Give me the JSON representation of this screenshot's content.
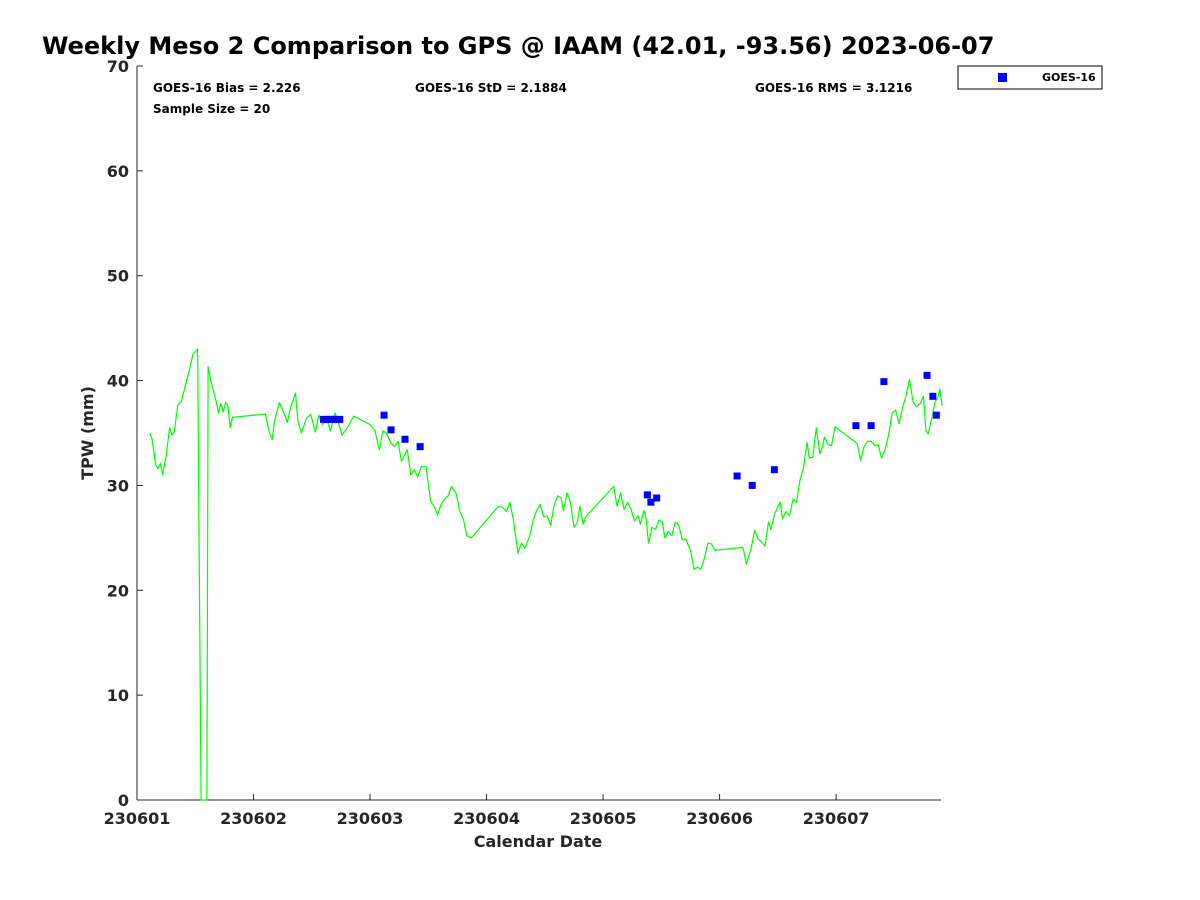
{
  "chart_data": {
    "type": "line",
    "title": "Weekly Meso 2 Comparison to GPS @ IAAM (42.01, -93.56) 2023-06-07",
    "xlabel": "Calendar Date",
    "ylabel": "TPW (mm)",
    "xlim": [
      0,
      6.9
    ],
    "ylim": [
      0,
      70
    ],
    "x_ticks": [
      {
        "value": 0,
        "label": "230601"
      },
      {
        "value": 1,
        "label": "230602"
      },
      {
        "value": 2,
        "label": "230603"
      },
      {
        "value": 3,
        "label": "230604"
      },
      {
        "value": 4,
        "label": "230605"
      },
      {
        "value": 5,
        "label": "230606"
      },
      {
        "value": 6,
        "label": "230607"
      }
    ],
    "y_ticks": [
      {
        "value": 0,
        "label": "0"
      },
      {
        "value": 10,
        "label": "10"
      },
      {
        "value": 20,
        "label": "20"
      },
      {
        "value": 30,
        "label": "30"
      },
      {
        "value": 40,
        "label": "40"
      },
      {
        "value": 50,
        "label": "50"
      },
      {
        "value": 60,
        "label": "60"
      },
      {
        "value": 70,
        "label": "70"
      }
    ],
    "stats": {
      "bias": "GOES-16 Bias = 2.226",
      "std": "GOES-16 StD = 2.1884",
      "rms": "GOES-16 RMS = 3.1216",
      "sample_size": "Sample Size = 20"
    },
    "legend": {
      "label": "GOES-16",
      "position": "top-right-outside"
    },
    "gps_series": {
      "name": "GPS",
      "color": "#00ff00",
      "points": [
        [
          0.11,
          35.0
        ],
        [
          0.13,
          34.4
        ],
        [
          0.16,
          32.0
        ],
        [
          0.18,
          31.6
        ],
        [
          0.2,
          32.1
        ],
        [
          0.22,
          31.0
        ],
        [
          0.25,
          32.8
        ],
        [
          0.28,
          35.5
        ],
        [
          0.3,
          34.8
        ],
        [
          0.32,
          35.1
        ],
        [
          0.35,
          37.7
        ],
        [
          0.38,
          38.0
        ],
        [
          0.41,
          39.3
        ],
        [
          0.45,
          41.0
        ],
        [
          0.48,
          42.5
        ],
        [
          0.52,
          43.0
        ],
        [
          0.55,
          0.0
        ],
        [
          0.6,
          0.0
        ],
        [
          0.61,
          41.3
        ],
        [
          0.64,
          39.7
        ],
        [
          0.68,
          38.0
        ],
        [
          0.7,
          36.9
        ],
        [
          0.72,
          37.8
        ],
        [
          0.74,
          37.0
        ],
        [
          0.76,
          37.9
        ],
        [
          0.78,
          37.6
        ],
        [
          0.8,
          35.5
        ],
        [
          0.82,
          36.5
        ],
        [
          1.1,
          36.8
        ],
        [
          1.14,
          34.9
        ],
        [
          1.16,
          34.4
        ],
        [
          1.18,
          36.1
        ],
        [
          1.22,
          37.9
        ],
        [
          1.25,
          37.2
        ],
        [
          1.29,
          36.0
        ],
        [
          1.32,
          37.5
        ],
        [
          1.36,
          38.8
        ],
        [
          1.38,
          36.2
        ],
        [
          1.41,
          35.0
        ],
        [
          1.45,
          36.3
        ],
        [
          1.49,
          36.8
        ],
        [
          1.53,
          35.1
        ],
        [
          1.56,
          36.7
        ],
        [
          1.59,
          35.8
        ],
        [
          1.63,
          36.3
        ],
        [
          1.66,
          35.2
        ],
        [
          1.7,
          36.9
        ],
        [
          1.73,
          35.9
        ],
        [
          1.76,
          34.8
        ],
        [
          1.8,
          35.4
        ],
        [
          1.86,
          36.6
        ],
        [
          2.0,
          35.8
        ],
        [
          2.04,
          35.3
        ],
        [
          2.08,
          33.4
        ],
        [
          2.11,
          35.2
        ],
        [
          2.14,
          35.0
        ],
        [
          2.18,
          34.0
        ],
        [
          2.21,
          33.7
        ],
        [
          2.24,
          34.2
        ],
        [
          2.27,
          32.3
        ],
        [
          2.32,
          33.4
        ],
        [
          2.35,
          31.0
        ],
        [
          2.38,
          31.5
        ],
        [
          2.41,
          30.8
        ],
        [
          2.44,
          31.8
        ],
        [
          2.48,
          31.8
        ],
        [
          2.52,
          28.5
        ],
        [
          2.55,
          28.0
        ],
        [
          2.58,
          27.2
        ],
        [
          2.61,
          28.2
        ],
        [
          2.64,
          28.7
        ],
        [
          2.67,
          29.0
        ],
        [
          2.7,
          29.9
        ],
        [
          2.74,
          29.2
        ],
        [
          2.77,
          27.5
        ],
        [
          2.8,
          26.8
        ],
        [
          2.83,
          25.2
        ],
        [
          2.87,
          25.0
        ],
        [
          3.1,
          28.0
        ],
        [
          3.14,
          27.9
        ],
        [
          3.17,
          27.5
        ],
        [
          3.2,
          28.4
        ],
        [
          3.23,
          26.7
        ],
        [
          3.27,
          23.5
        ],
        [
          3.3,
          24.5
        ],
        [
          3.33,
          24.0
        ],
        [
          3.37,
          25.2
        ],
        [
          3.4,
          26.7
        ],
        [
          3.43,
          27.6
        ],
        [
          3.46,
          28.2
        ],
        [
          3.49,
          27.0
        ],
        [
          3.52,
          27.1
        ],
        [
          3.55,
          26.2
        ],
        [
          3.58,
          28.1
        ],
        [
          3.61,
          29.0
        ],
        [
          3.64,
          28.8
        ],
        [
          3.66,
          27.6
        ],
        [
          3.69,
          29.3
        ],
        [
          3.72,
          28.4
        ],
        [
          3.75,
          26.0
        ],
        [
          3.78,
          26.5
        ],
        [
          3.8,
          28.0
        ],
        [
          3.83,
          26.3
        ],
        [
          3.85,
          27.0
        ],
        [
          4.09,
          29.9
        ],
        [
          4.12,
          28.0
        ],
        [
          4.15,
          29.3
        ],
        [
          4.18,
          27.7
        ],
        [
          4.21,
          28.4
        ],
        [
          4.24,
          27.7
        ],
        [
          4.27,
          26.6
        ],
        [
          4.3,
          27.1
        ],
        [
          4.32,
          26.3
        ],
        [
          4.35,
          27.6
        ],
        [
          4.37,
          26.8
        ],
        [
          4.39,
          24.5
        ],
        [
          4.42,
          26.0
        ],
        [
          4.45,
          25.8
        ],
        [
          4.48,
          26.7
        ],
        [
          4.51,
          26.5
        ],
        [
          4.53,
          25.0
        ],
        [
          4.56,
          25.6
        ],
        [
          4.59,
          25.2
        ],
        [
          4.62,
          26.5
        ],
        [
          4.65,
          26.2
        ],
        [
          4.68,
          24.8
        ],
        [
          4.71,
          24.9
        ],
        [
          4.75,
          23.8
        ],
        [
          4.78,
          22.0
        ],
        [
          4.81,
          22.2
        ],
        [
          4.84,
          22.0
        ],
        [
          4.87,
          23.1
        ],
        [
          4.9,
          24.5
        ],
        [
          4.93,
          24.4
        ],
        [
          4.96,
          23.8
        ],
        [
          5.2,
          24.1
        ],
        [
          5.23,
          22.5
        ],
        [
          5.27,
          24.0
        ],
        [
          5.3,
          25.7
        ],
        [
          5.33,
          24.9
        ],
        [
          5.36,
          24.6
        ],
        [
          5.39,
          24.2
        ],
        [
          5.42,
          26.5
        ],
        [
          5.44,
          25.8
        ],
        [
          5.47,
          27.2
        ],
        [
          5.5,
          28.0
        ],
        [
          5.52,
          28.4
        ],
        [
          5.54,
          26.8
        ],
        [
          5.57,
          27.5
        ],
        [
          5.6,
          27.1
        ],
        [
          5.63,
          28.7
        ],
        [
          5.66,
          28.4
        ],
        [
          5.69,
          30.5
        ],
        [
          5.72,
          31.7
        ],
        [
          5.75,
          34.1
        ],
        [
          5.77,
          32.6
        ],
        [
          5.8,
          32.7
        ],
        [
          5.83,
          35.5
        ],
        [
          5.86,
          33.0
        ],
        [
          5.88,
          33.6
        ],
        [
          5.9,
          34.6
        ],
        [
          5.93,
          33.9
        ],
        [
          5.96,
          33.8
        ],
        [
          5.99,
          35.6
        ],
        [
          6.18,
          34.0
        ],
        [
          6.21,
          32.4
        ],
        [
          6.24,
          33.7
        ],
        [
          6.27,
          34.2
        ],
        [
          6.3,
          34.2
        ],
        [
          6.33,
          33.8
        ],
        [
          6.36,
          33.9
        ],
        [
          6.39,
          32.6
        ],
        [
          6.42,
          33.4
        ],
        [
          6.45,
          34.8
        ],
        [
          6.48,
          36.9
        ],
        [
          6.51,
          37.2
        ],
        [
          6.54,
          35.9
        ],
        [
          6.57,
          37.4
        ],
        [
          6.6,
          38.5
        ],
        [
          6.63,
          40.1
        ],
        [
          6.66,
          38.0
        ],
        [
          6.69,
          37.5
        ],
        [
          6.72,
          37.8
        ],
        [
          6.75,
          38.5
        ],
        [
          6.77,
          35.2
        ],
        [
          6.79,
          34.9
        ],
        [
          6.82,
          36.4
        ],
        [
          6.85,
          38.0
        ],
        [
          6.87,
          38.3
        ],
        [
          6.89,
          39.2
        ],
        [
          6.91,
          37.6
        ]
      ]
    },
    "goes_series": {
      "name": "GOES-16",
      "color": "#0000ff",
      "points": [
        [
          1.6,
          36.3
        ],
        [
          1.64,
          36.3
        ],
        [
          1.67,
          36.3
        ],
        [
          1.7,
          36.3
        ],
        [
          1.74,
          36.3
        ],
        [
          2.12,
          36.7
        ],
        [
          2.18,
          35.3
        ],
        [
          2.3,
          34.4
        ],
        [
          2.43,
          33.7
        ],
        [
          4.38,
          29.1
        ],
        [
          4.41,
          28.4
        ],
        [
          4.46,
          28.8
        ],
        [
          5.15,
          30.9
        ],
        [
          5.28,
          30.0
        ],
        [
          5.47,
          31.5
        ],
        [
          6.17,
          35.7
        ],
        [
          6.3,
          35.7
        ],
        [
          6.41,
          39.9
        ],
        [
          6.78,
          40.5
        ],
        [
          6.83,
          38.5
        ],
        [
          6.86,
          36.7
        ]
      ]
    }
  }
}
